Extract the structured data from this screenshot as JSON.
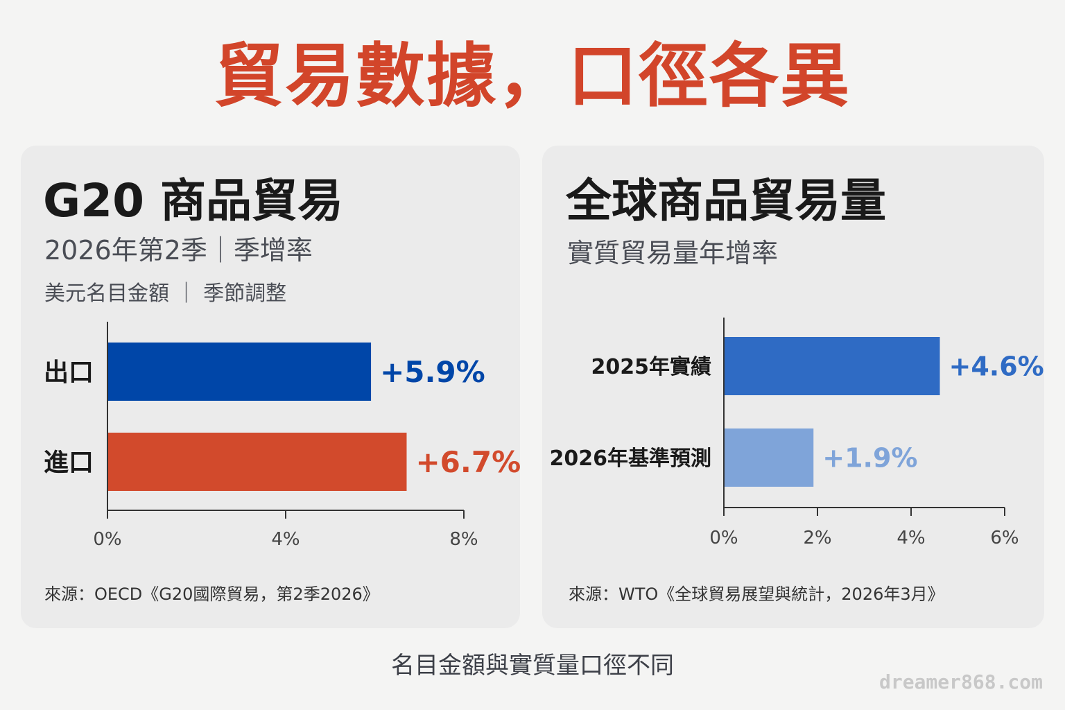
{
  "title": "貿易數據，口徑各異",
  "footer_note": "名目金額與實質量口徑不同",
  "watermark": "dreamer868.com",
  "colors": {
    "title": "#d2452a",
    "export": "#0046a8",
    "import": "#d24a2c",
    "actual_2025": "#2f6bc4",
    "forecast_2026": "#7fa4d9"
  },
  "chart_data": [
    {
      "type": "bar",
      "orientation": "horizontal",
      "title": "G20 商品貿易",
      "subtitle": "2026年第2季｜季增率",
      "note": "美元名目金額 ｜ 季節調整",
      "categories": [
        "出口",
        "進口"
      ],
      "values": [
        5.9,
        6.7
      ],
      "value_labels": [
        "+5.9%",
        "+6.7%"
      ],
      "bar_colors": [
        "#0046a8",
        "#d24a2c"
      ],
      "xlim": [
        0,
        8
      ],
      "xticks": [
        0,
        4,
        8
      ],
      "xtick_labels": [
        "0%",
        "4%",
        "8%"
      ],
      "grid": false,
      "source": "來源：OECD《G20國際貿易，第2季2026》"
    },
    {
      "type": "bar",
      "orientation": "horizontal",
      "title": "全球商品貿易量",
      "subtitle": "實質貿易量年增率",
      "categories": [
        "2025年實績",
        "2026年基準預測"
      ],
      "values": [
        4.6,
        1.9
      ],
      "value_labels": [
        "+4.6%",
        "+1.9%"
      ],
      "bar_colors": [
        "#2f6bc4",
        "#7fa4d9"
      ],
      "xlim": [
        0,
        6
      ],
      "xticks": [
        0,
        2,
        4,
        6
      ],
      "xtick_labels": [
        "0%",
        "2%",
        "4%",
        "6%"
      ],
      "grid": false,
      "source": "來源：WTO《全球貿易展望與統計，2026年3月》"
    }
  ]
}
